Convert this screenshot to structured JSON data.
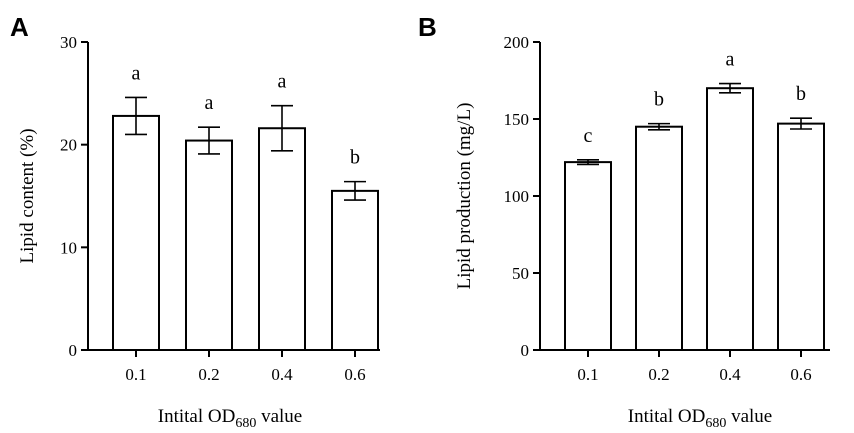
{
  "chart_data": [
    {
      "type": "bar",
      "panel": "A",
      "categories": [
        "0.1",
        "0.2",
        "0.4",
        "0.6"
      ],
      "values": [
        22.8,
        20.4,
        21.6,
        15.5
      ],
      "errors": [
        1.8,
        1.3,
        2.2,
        0.9
      ],
      "significance": [
        "a",
        "a",
        "a",
        "b"
      ],
      "ylabel": "Lipid content (%)",
      "xlabel_prefix": "Intital OD",
      "xlabel_sub": "680",
      "xlabel_suffix": " value",
      "ylim": [
        0,
        30
      ],
      "yticks": [
        0,
        10,
        20,
        30
      ],
      "grid": false
    },
    {
      "type": "bar",
      "panel": "B",
      "categories": [
        "0.1",
        "0.2",
        "0.4",
        "0.6"
      ],
      "values": [
        122,
        145,
        170,
        147
      ],
      "errors": [
        1.5,
        2,
        3,
        3.5
      ],
      "significance": [
        "c",
        "b",
        "a",
        "b"
      ],
      "ylabel": "Lipid production (mg/L)",
      "xlabel_prefix": "Intital OD",
      "xlabel_sub": "680",
      "xlabel_suffix": " value",
      "ylim": [
        0,
        200
      ],
      "yticks": [
        0,
        50,
        100,
        150,
        200
      ],
      "grid": false
    }
  ]
}
